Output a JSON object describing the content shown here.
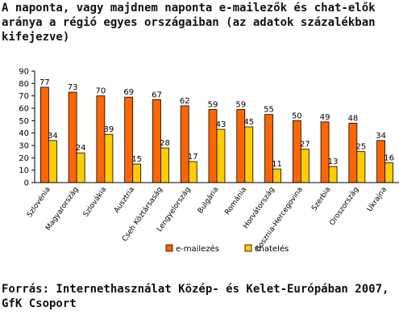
{
  "header": {
    "title_line1": "A naponta, vagy majdnem naponta e-mailezők és chat-elők",
    "title_line2": "aránya a régió egyes országaiban (az adatok százalékban",
    "title_line3": "kifejezve)"
  },
  "footer": {
    "source_line1": "Forrás: Internethasználat Közép- és Kelet-Európában 2007,",
    "source_line2": "GfK Csoport"
  },
  "chart_data": {
    "type": "bar",
    "title": "A naponta, vagy majdnem naponta e-mailezők és chat-elők aránya a régió egyes országaiban (az adatok százalékban kifejezve)",
    "categories": [
      "Szlovénia",
      "Magyarország",
      "Szlovákia",
      "Ausztria",
      "Cseh Köztársaság",
      "Lengyelország",
      "Bulgária",
      "Románia",
      "Horvátország",
      "Bosznia-Hercegovina",
      "Szerbia",
      "Oroszország",
      "Ukrajna"
    ],
    "series": [
      {
        "name": "e-mailezés",
        "color": "#ff6600",
        "values": [
          77,
          73,
          70,
          69,
          67,
          62,
          59,
          59,
          55,
          50,
          49,
          48,
          34
        ],
        "labels": [
          "77",
          "73",
          "70",
          "69",
          "67",
          "62",
          "59",
          "59",
          "55",
          "50",
          "49",
          "48",
          "34"
        ]
      },
      {
        "name": "chatelés",
        "color": "#ffcc00",
        "values": [
          34,
          24,
          39,
          15,
          28,
          17,
          43,
          45,
          11,
          27,
          13,
          25,
          16
        ],
        "labels": [
          "34",
          "24",
          "39",
          "15",
          "28",
          "17",
          "43",
          "45",
          "11",
          "27",
          "13",
          "25",
          "16"
        ]
      }
    ],
    "ylim": [
      0,
      90
    ],
    "yticks": [
      "0",
      "10",
      "20",
      "30",
      "40",
      "50",
      "60",
      "70",
      "80",
      "90"
    ],
    "grid": false,
    "legend_position": "bottom",
    "legend": [
      "e-mailezés",
      "chatelés"
    ]
  }
}
